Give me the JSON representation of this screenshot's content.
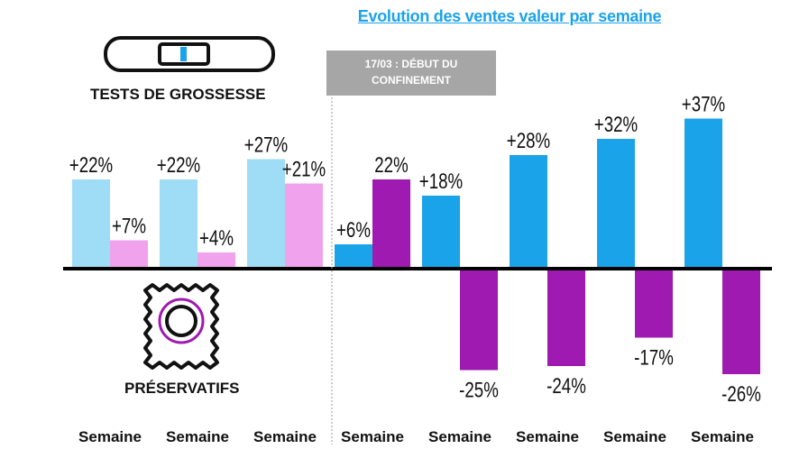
{
  "title": "Evolution des ventes valeur par semaine",
  "legend": {
    "tests_label": "TESTS DE GROSSESSE",
    "preservatifs_label": "PRÉSERVATIFS",
    "tests_icon": "pregnancy-test-icon",
    "preservatifs_icon": "condom-wrapper-icon"
  },
  "annotation": {
    "line1": "17/03 : DÉBUT DU",
    "line2": "CONFINEMENT",
    "after_category_index": 3
  },
  "colors": {
    "tests_before": "#9fdcf6",
    "preservatifs_before": "#f0a3ec",
    "tests_after": "#1aa3e8",
    "preservatifs_after": "#9e1ab0",
    "axis": "#000000",
    "divider": "#9a9a9a",
    "callout_bg": "#a6a6a6"
  },
  "chart_data": {
    "type": "bar",
    "title": "Evolution des ventes valeur par semaine",
    "categories": [
      "Semaine",
      "Semaine",
      "Semaine",
      "Semaine",
      "Semaine",
      "Semaine",
      "Semaine",
      "Semaine"
    ],
    "series": [
      {
        "name": "TESTS DE GROSSESSE",
        "values": [
          22,
          22,
          27,
          6,
          18,
          28,
          32,
          37
        ],
        "labels": [
          "+22%",
          "+22%",
          "+27%",
          "+6%",
          "+18%",
          "+28%",
          "+32%",
          "+37%"
        ]
      },
      {
        "name": "PRÉSERVATIFS",
        "values": [
          7,
          4,
          21,
          22,
          -25,
          -24,
          -17,
          -26
        ],
        "labels": [
          "+7%",
          "+4%",
          "+21%",
          "22%",
          "-25%",
          "-24%",
          "-17%",
          "-26%"
        ]
      }
    ],
    "ylim": [
      -30,
      40
    ],
    "grid": false
  }
}
